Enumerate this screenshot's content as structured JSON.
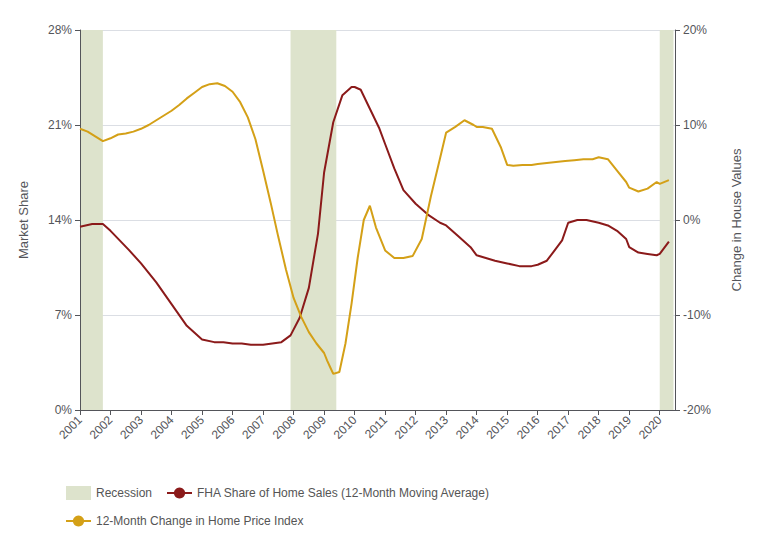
{
  "chart_data": {
    "type": "line",
    "ylabel": "Market Share",
    "y2label": "Change in House Values",
    "xlim": [
      2001,
      2020.5
    ],
    "xticks": [
      2001,
      2002,
      2003,
      2004,
      2005,
      2006,
      2007,
      2008,
      2009,
      2010,
      2011,
      2012,
      2013,
      2014,
      2015,
      2016,
      2017,
      2018,
      2019,
      2020
    ],
    "ylim": [
      0,
      0.28
    ],
    "yticks": [
      {
        "value": 0,
        "label": "0%"
      },
      {
        "value": 0.07,
        "label": "7%"
      },
      {
        "value": 0.14,
        "label": "14%"
      },
      {
        "value": 0.21,
        "label": "21%"
      },
      {
        "value": 0.28,
        "label": "28%"
      }
    ],
    "y2lim": [
      -0.2,
      0.2
    ],
    "y2ticks": [
      {
        "value": -0.2,
        "label": "-20%"
      },
      {
        "value": -0.1,
        "label": "-10%"
      },
      {
        "value": 0.0,
        "label": "0%"
      },
      {
        "value": 0.1,
        "label": "10%"
      },
      {
        "value": 0.2,
        "label": "20%"
      }
    ],
    "grid": true,
    "legend": "lower left",
    "shaded_ranges": {
      "name": "Recession",
      "color": "#dde3cc",
      "ranges": [
        [
          2001.0,
          2001.75
        ],
        [
          2007.9,
          2009.4
        ],
        [
          2020.0,
          2020.45
        ]
      ]
    },
    "series": [
      {
        "name": "FHA Share of Home Sales (12-Month Moving Average)",
        "color": "#8b1a1a",
        "x": [
          2001.0,
          2001.4,
          2001.75,
          2002.0,
          2002.3,
          2002.6,
          2003.0,
          2003.5,
          2004.0,
          2004.5,
          2005.0,
          2005.4,
          2005.7,
          2006.0,
          2006.3,
          2006.6,
          2007.0,
          2007.3,
          2007.6,
          2007.9,
          2008.2,
          2008.5,
          2008.8,
          2009.0,
          2009.3,
          2009.6,
          2009.9,
          2010.0,
          2010.2,
          2010.5,
          2010.8,
          2011.0,
          2011.3,
          2011.6,
          2012.0,
          2012.4,
          2012.8,
          2013.0,
          2013.4,
          2013.8,
          2014.0,
          2014.3,
          2014.6,
          2015.0,
          2015.4,
          2015.8,
          2016.0,
          2016.3,
          2016.5,
          2016.8,
          2017.0,
          2017.3,
          2017.6,
          2018.0,
          2018.3,
          2018.6,
          2018.9,
          2019.0,
          2019.3,
          2019.6,
          2019.9,
          2020.0,
          2020.3
        ],
        "values": [
          0.135,
          0.137,
          0.137,
          0.132,
          0.125,
          0.118,
          0.108,
          0.094,
          0.078,
          0.062,
          0.052,
          0.05,
          0.05,
          0.049,
          0.049,
          0.048,
          0.048,
          0.049,
          0.05,
          0.055,
          0.068,
          0.09,
          0.13,
          0.175,
          0.212,
          0.232,
          0.238,
          0.238,
          0.236,
          0.222,
          0.208,
          0.196,
          0.178,
          0.162,
          0.152,
          0.144,
          0.138,
          0.136,
          0.128,
          0.12,
          0.114,
          0.112,
          0.11,
          0.108,
          0.106,
          0.106,
          0.107,
          0.11,
          0.116,
          0.125,
          0.138,
          0.14,
          0.14,
          0.138,
          0.136,
          0.132,
          0.126,
          0.12,
          0.116,
          0.115,
          0.114,
          0.115,
          0.124
        ]
      },
      {
        "name": "12-Month Change in Home Price Index",
        "color": "#d4a017",
        "axis": "y2",
        "x": [
          2001.0,
          2001.25,
          2001.5,
          2001.75,
          2002.0,
          2002.25,
          2002.5,
          2002.75,
          2003.0,
          2003.25,
          2003.5,
          2003.75,
          2004.0,
          2004.25,
          2004.5,
          2004.75,
          2005.0,
          2005.25,
          2005.5,
          2005.75,
          2006.0,
          2006.25,
          2006.5,
          2006.75,
          2007.0,
          2007.25,
          2007.5,
          2007.75,
          2008.0,
          2008.25,
          2008.5,
          2008.75,
          2009.0,
          2009.1,
          2009.2,
          2009.3,
          2009.5,
          2009.7,
          2009.9,
          2010.1,
          2010.3,
          2010.5,
          2010.7,
          2011.0,
          2011.3,
          2011.6,
          2011.9,
          2012.2,
          2012.5,
          2012.8,
          2013.0,
          2013.3,
          2013.6,
          2013.9,
          2014.0,
          2014.2,
          2014.5,
          2014.8,
          2015.0,
          2015.2,
          2015.5,
          2015.8,
          2016.0,
          2016.3,
          2016.6,
          2016.9,
          2017.2,
          2017.5,
          2017.8,
          2018.0,
          2018.3,
          2018.6,
          2018.9,
          2019.0,
          2019.3,
          2019.6,
          2019.9,
          2020.0,
          2020.3
        ],
        "values": [
          0.096,
          0.093,
          0.088,
          0.083,
          0.086,
          0.09,
          0.091,
          0.093,
          0.096,
          0.1,
          0.105,
          0.11,
          0.115,
          0.121,
          0.128,
          0.134,
          0.14,
          0.143,
          0.144,
          0.141,
          0.135,
          0.124,
          0.108,
          0.085,
          0.052,
          0.018,
          -0.018,
          -0.052,
          -0.082,
          -0.102,
          -0.118,
          -0.13,
          -0.14,
          -0.148,
          -0.155,
          -0.162,
          -0.16,
          -0.13,
          -0.088,
          -0.04,
          0.0,
          0.015,
          -0.008,
          -0.032,
          -0.04,
          -0.04,
          -0.038,
          -0.02,
          0.025,
          0.065,
          0.092,
          0.098,
          0.105,
          0.1,
          0.098,
          0.098,
          0.096,
          0.076,
          0.058,
          0.057,
          0.058,
          0.058,
          0.059,
          0.06,
          0.061,
          0.062,
          0.063,
          0.064,
          0.064,
          0.066,
          0.064,
          0.052,
          0.04,
          0.034,
          0.03,
          0.033,
          0.04,
          0.038,
          0.042
        ]
      }
    ]
  }
}
